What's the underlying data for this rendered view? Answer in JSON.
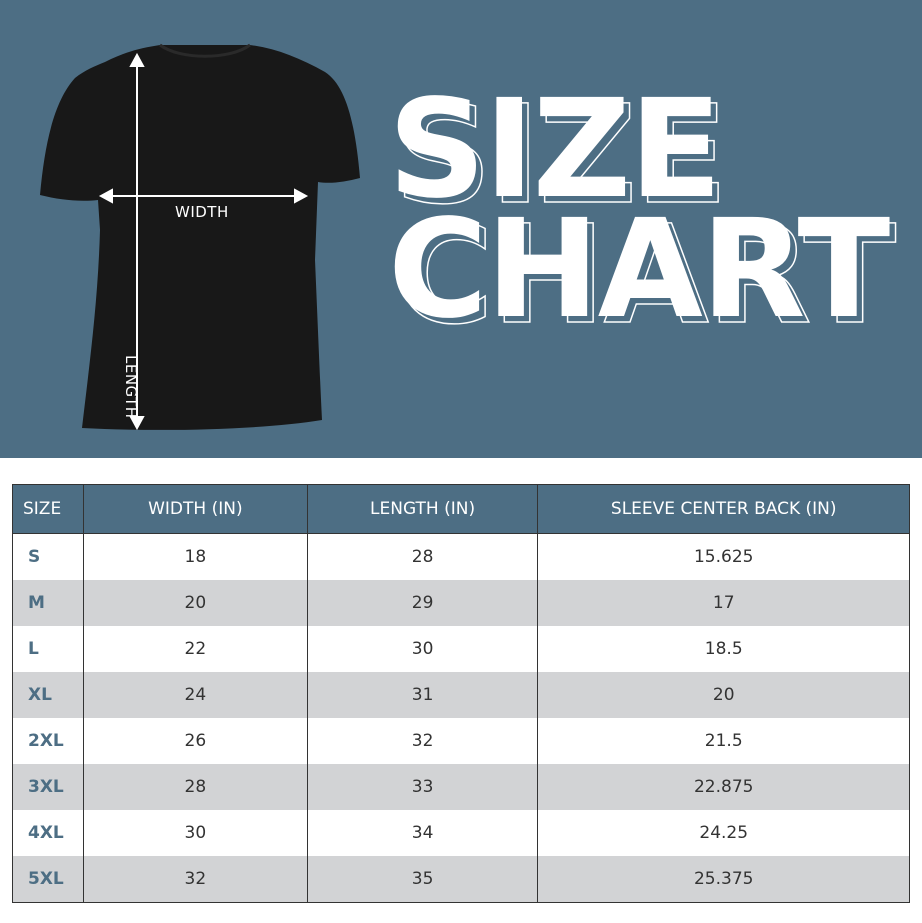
{
  "hero": {
    "title_line1": "SIZE",
    "title_line2": "CHART",
    "width_label": "WIDTH",
    "length_label": "LENGTH",
    "background_color": "#4d6e84"
  },
  "chart_data": {
    "type": "table",
    "columns": [
      "SIZE",
      "WIDTH (IN)",
      "LENGTH (IN)",
      "SLEEVE CENTER BACK (IN)"
    ],
    "rows": [
      [
        "S",
        "18",
        "28",
        "15.625"
      ],
      [
        "M",
        "20",
        "29",
        "17"
      ],
      [
        "L",
        "22",
        "30",
        "18.5"
      ],
      [
        "XL",
        "24",
        "31",
        "20"
      ],
      [
        "2XL",
        "26",
        "32",
        "21.5"
      ],
      [
        "3XL",
        "28",
        "33",
        "22.875"
      ],
      [
        "4XL",
        "30",
        "34",
        "24.25"
      ],
      [
        "5XL",
        "32",
        "35",
        "25.375"
      ]
    ]
  }
}
